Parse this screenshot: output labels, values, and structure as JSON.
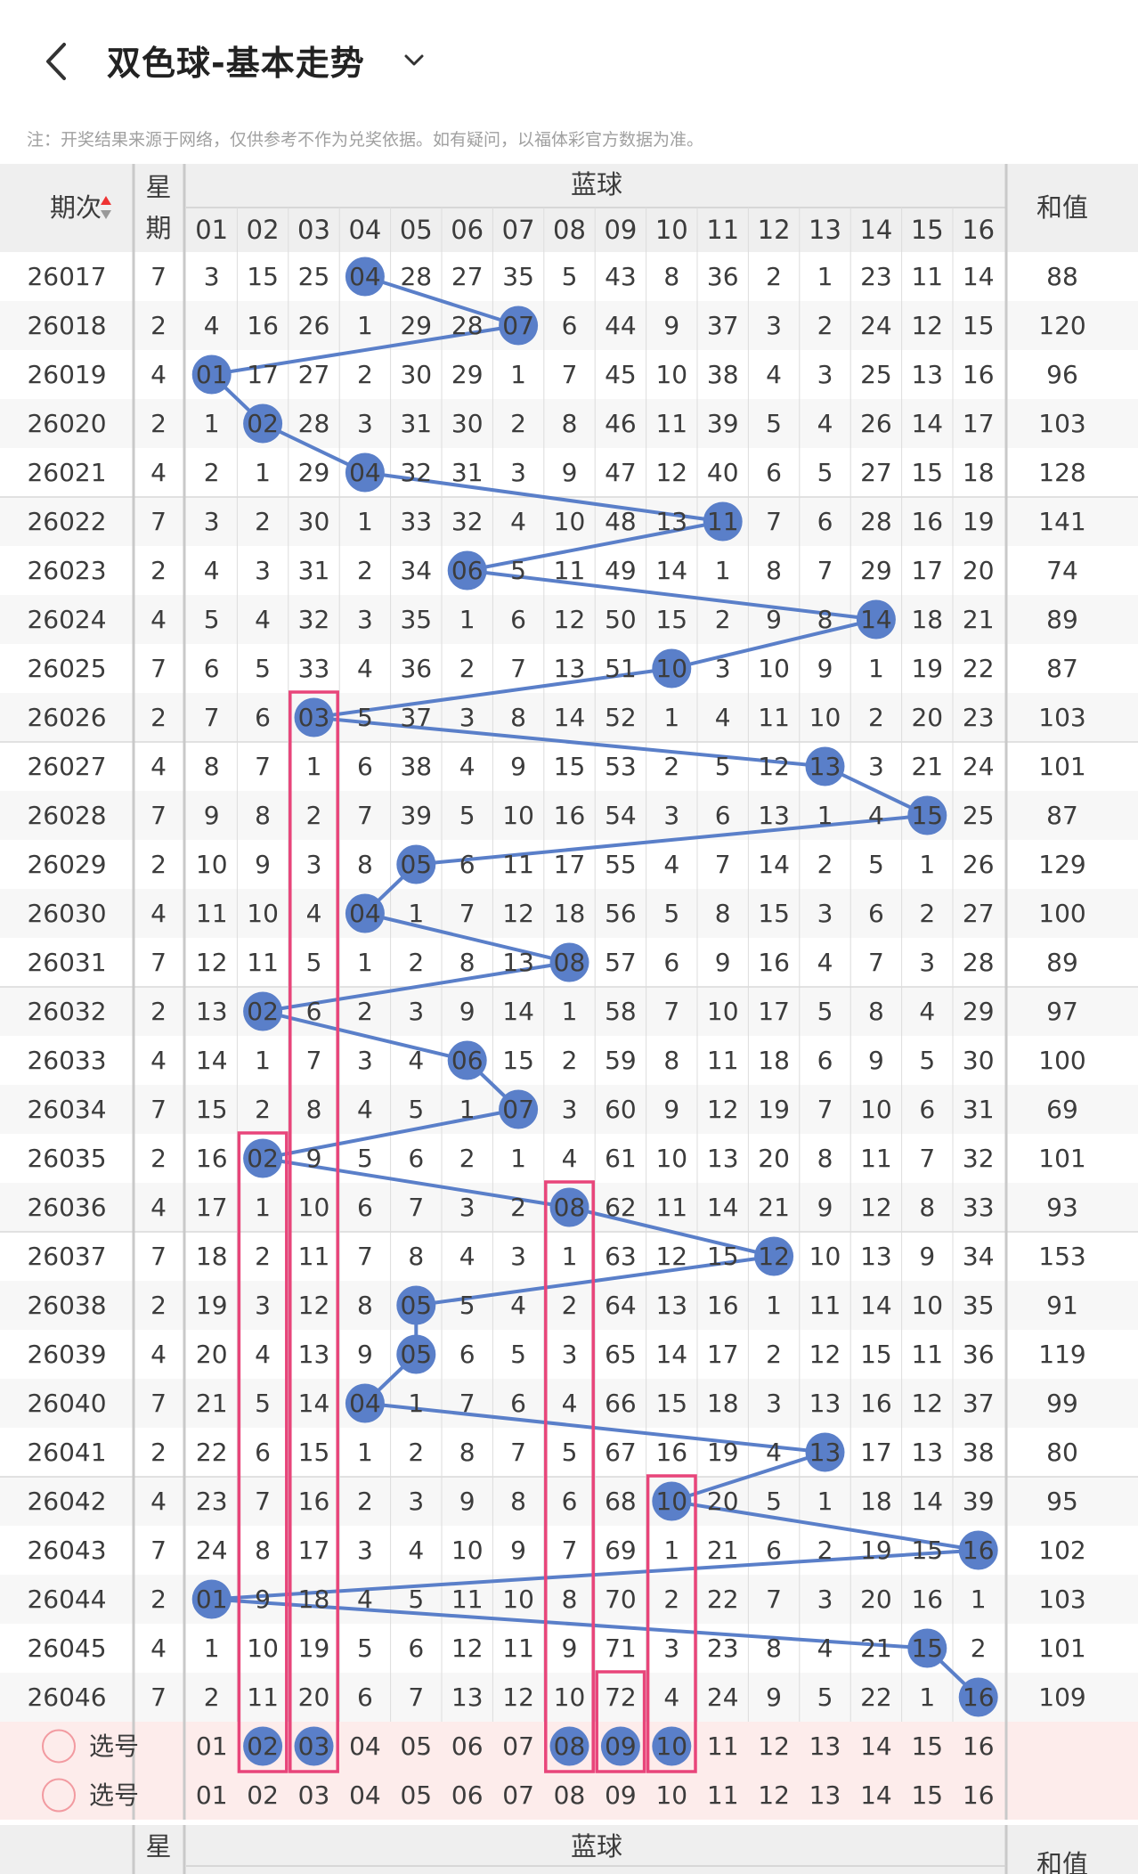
{
  "header": {
    "title": "双色球-基本走势",
    "notice": "注：开奖结果来源于网络，仅供参考不作为兑奖依据。如有疑问，以福体彩官方数据为准。"
  },
  "table": {
    "issue_label": "期次",
    "week_label_1": "星",
    "week_label_2": "期",
    "blue_label": "蓝球",
    "sum_label": "和值",
    "columns": [
      "01",
      "02",
      "03",
      "04",
      "05",
      "06",
      "07",
      "08",
      "09",
      "10",
      "11",
      "12",
      "13",
      "14",
      "15",
      "16"
    ],
    "rows": [
      {
        "issue": "26017",
        "week": "7",
        "blue": 4,
        "sum": "88",
        "cells": [
          "3",
          "15",
          "25",
          "04",
          "28",
          "27",
          "35",
          "5",
          "43",
          "8",
          "36",
          "2",
          "1",
          "23",
          "11",
          "14"
        ]
      },
      {
        "issue": "26018",
        "week": "2",
        "blue": 7,
        "sum": "120",
        "cells": [
          "4",
          "16",
          "26",
          "1",
          "29",
          "28",
          "07",
          "6",
          "44",
          "9",
          "37",
          "3",
          "2",
          "24",
          "12",
          "15"
        ]
      },
      {
        "issue": "26019",
        "week": "4",
        "blue": 1,
        "sum": "96",
        "cells": [
          "01",
          "17",
          "27",
          "2",
          "30",
          "29",
          "1",
          "7",
          "45",
          "10",
          "38",
          "4",
          "3",
          "25",
          "13",
          "16"
        ]
      },
      {
        "issue": "26020",
        "week": "2",
        "blue": 2,
        "sum": "103",
        "cells": [
          "1",
          "02",
          "28",
          "3",
          "31",
          "30",
          "2",
          "8",
          "46",
          "11",
          "39",
          "5",
          "4",
          "26",
          "14",
          "17"
        ]
      },
      {
        "issue": "26021",
        "week": "4",
        "blue": 4,
        "sum": "128",
        "cells": [
          "2",
          "1",
          "29",
          "04",
          "32",
          "31",
          "3",
          "9",
          "47",
          "12",
          "40",
          "6",
          "5",
          "27",
          "15",
          "18"
        ]
      },
      {
        "issue": "26022",
        "week": "7",
        "blue": 11,
        "sum": "141",
        "cells": [
          "3",
          "2",
          "30",
          "1",
          "33",
          "32",
          "4",
          "10",
          "48",
          "13",
          "11",
          "7",
          "6",
          "28",
          "16",
          "19"
        ]
      },
      {
        "issue": "26023",
        "week": "2",
        "blue": 6,
        "sum": "74",
        "cells": [
          "4",
          "3",
          "31",
          "2",
          "34",
          "06",
          "5",
          "11",
          "49",
          "14",
          "1",
          "8",
          "7",
          "29",
          "17",
          "20"
        ]
      },
      {
        "issue": "26024",
        "week": "4",
        "blue": 14,
        "sum": "89",
        "cells": [
          "5",
          "4",
          "32",
          "3",
          "35",
          "1",
          "6",
          "12",
          "50",
          "15",
          "2",
          "9",
          "8",
          "14",
          "18",
          "21"
        ]
      },
      {
        "issue": "26025",
        "week": "7",
        "blue": 10,
        "sum": "87",
        "cells": [
          "6",
          "5",
          "33",
          "4",
          "36",
          "2",
          "7",
          "13",
          "51",
          "10",
          "3",
          "10",
          "9",
          "1",
          "19",
          "22"
        ]
      },
      {
        "issue": "26026",
        "week": "2",
        "blue": 3,
        "sum": "103",
        "cells": [
          "7",
          "6",
          "03",
          "5",
          "37",
          "3",
          "8",
          "14",
          "52",
          "1",
          "4",
          "11",
          "10",
          "2",
          "20",
          "23"
        ]
      },
      {
        "issue": "26027",
        "week": "4",
        "blue": 13,
        "sum": "101",
        "cells": [
          "8",
          "7",
          "1",
          "6",
          "38",
          "4",
          "9",
          "15",
          "53",
          "2",
          "5",
          "12",
          "13",
          "3",
          "21",
          "24"
        ]
      },
      {
        "issue": "26028",
        "week": "7",
        "blue": 15,
        "sum": "87",
        "cells": [
          "9",
          "8",
          "2",
          "7",
          "39",
          "5",
          "10",
          "16",
          "54",
          "3",
          "6",
          "13",
          "1",
          "4",
          "15",
          "25"
        ]
      },
      {
        "issue": "26029",
        "week": "2",
        "blue": 5,
        "sum": "129",
        "cells": [
          "10",
          "9",
          "3",
          "8",
          "05",
          "6",
          "11",
          "17",
          "55",
          "4",
          "7",
          "14",
          "2",
          "5",
          "1",
          "26"
        ]
      },
      {
        "issue": "26030",
        "week": "4",
        "blue": 4,
        "sum": "100",
        "cells": [
          "11",
          "10",
          "4",
          "04",
          "1",
          "7",
          "12",
          "18",
          "56",
          "5",
          "8",
          "15",
          "3",
          "6",
          "2",
          "27"
        ]
      },
      {
        "issue": "26031",
        "week": "7",
        "blue": 8,
        "sum": "89",
        "cells": [
          "12",
          "11",
          "5",
          "1",
          "2",
          "8",
          "13",
          "08",
          "57",
          "6",
          "9",
          "16",
          "4",
          "7",
          "3",
          "28"
        ]
      },
      {
        "issue": "26032",
        "week": "2",
        "blue": 2,
        "sum": "97",
        "cells": [
          "13",
          "02",
          "6",
          "2",
          "3",
          "9",
          "14",
          "1",
          "58",
          "7",
          "10",
          "17",
          "5",
          "8",
          "4",
          "29"
        ]
      },
      {
        "issue": "26033",
        "week": "4",
        "blue": 6,
        "sum": "100",
        "cells": [
          "14",
          "1",
          "7",
          "3",
          "4",
          "06",
          "15",
          "2",
          "59",
          "8",
          "11",
          "18",
          "6",
          "9",
          "5",
          "30"
        ]
      },
      {
        "issue": "26034",
        "week": "7",
        "blue": 7,
        "sum": "69",
        "cells": [
          "15",
          "2",
          "8",
          "4",
          "5",
          "1",
          "07",
          "3",
          "60",
          "9",
          "12",
          "19",
          "7",
          "10",
          "6",
          "31"
        ]
      },
      {
        "issue": "26035",
        "week": "2",
        "blue": 2,
        "sum": "101",
        "cells": [
          "16",
          "02",
          "9",
          "5",
          "6",
          "2",
          "1",
          "4",
          "61",
          "10",
          "13",
          "20",
          "8",
          "11",
          "7",
          "32"
        ]
      },
      {
        "issue": "26036",
        "week": "4",
        "blue": 8,
        "sum": "93",
        "cells": [
          "17",
          "1",
          "10",
          "6",
          "7",
          "3",
          "2",
          "08",
          "62",
          "11",
          "14",
          "21",
          "9",
          "12",
          "8",
          "33"
        ]
      },
      {
        "issue": "26037",
        "week": "7",
        "blue": 12,
        "sum": "153",
        "cells": [
          "18",
          "2",
          "11",
          "7",
          "8",
          "4",
          "3",
          "1",
          "63",
          "12",
          "15",
          "12",
          "10",
          "13",
          "9",
          "34"
        ]
      },
      {
        "issue": "26038",
        "week": "2",
        "blue": 5,
        "sum": "91",
        "cells": [
          "19",
          "3",
          "12",
          "8",
          "05",
          "5",
          "4",
          "2",
          "64",
          "13",
          "16",
          "1",
          "11",
          "14",
          "10",
          "35"
        ]
      },
      {
        "issue": "26039",
        "week": "4",
        "blue": 5,
        "sum": "119",
        "cells": [
          "20",
          "4",
          "13",
          "9",
          "05",
          "6",
          "5",
          "3",
          "65",
          "14",
          "17",
          "2",
          "12",
          "15",
          "11",
          "36"
        ]
      },
      {
        "issue": "26040",
        "week": "7",
        "blue": 4,
        "sum": "99",
        "cells": [
          "21",
          "5",
          "14",
          "04",
          "1",
          "7",
          "6",
          "4",
          "66",
          "15",
          "18",
          "3",
          "13",
          "16",
          "12",
          "37"
        ]
      },
      {
        "issue": "26041",
        "week": "2",
        "blue": 13,
        "sum": "80",
        "cells": [
          "22",
          "6",
          "15",
          "1",
          "2",
          "8",
          "7",
          "5",
          "67",
          "16",
          "19",
          "4",
          "13",
          "17",
          "13",
          "38"
        ]
      },
      {
        "issue": "26042",
        "week": "4",
        "blue": 10,
        "sum": "95",
        "cells": [
          "23",
          "7",
          "16",
          "2",
          "3",
          "9",
          "8",
          "6",
          "68",
          "10",
          "20",
          "5",
          "1",
          "18",
          "14",
          "39"
        ]
      },
      {
        "issue": "26043",
        "week": "7",
        "blue": 16,
        "sum": "102",
        "cells": [
          "24",
          "8",
          "17",
          "3",
          "4",
          "10",
          "9",
          "7",
          "69",
          "1",
          "21",
          "6",
          "2",
          "19",
          "15",
          "16"
        ]
      },
      {
        "issue": "26044",
        "week": "2",
        "blue": 1,
        "sum": "103",
        "cells": [
          "01",
          "9",
          "18",
          "4",
          "5",
          "11",
          "10",
          "8",
          "70",
          "2",
          "22",
          "7",
          "3",
          "20",
          "16",
          "1"
        ]
      },
      {
        "issue": "26045",
        "week": "4",
        "blue": 15,
        "sum": "101",
        "cells": [
          "1",
          "10",
          "19",
          "5",
          "6",
          "12",
          "11",
          "9",
          "71",
          "3",
          "23",
          "8",
          "4",
          "21",
          "15",
          "2"
        ]
      },
      {
        "issue": "26046",
        "week": "7",
        "blue": 16,
        "sum": "109",
        "cells": [
          "2",
          "11",
          "20",
          "6",
          "7",
          "13",
          "12",
          "10",
          "72",
          "4",
          "24",
          "9",
          "5",
          "22",
          "1",
          "16"
        ]
      }
    ],
    "select_label": "选号",
    "select_rows": [
      {
        "label": "选号",
        "picked": [
          2,
          3,
          8,
          9,
          10
        ]
      },
      {
        "label": "选号",
        "picked": []
      }
    ],
    "highlight_label_cells": [
      "72"
    ]
  },
  "colors": {
    "ball": "#5a7fc9",
    "line": "#5a7fc9",
    "frame": "#e8457a",
    "select_bg": "#fdeceb",
    "select_text": "#f29aa0",
    "header_bg": "#efefef"
  }
}
